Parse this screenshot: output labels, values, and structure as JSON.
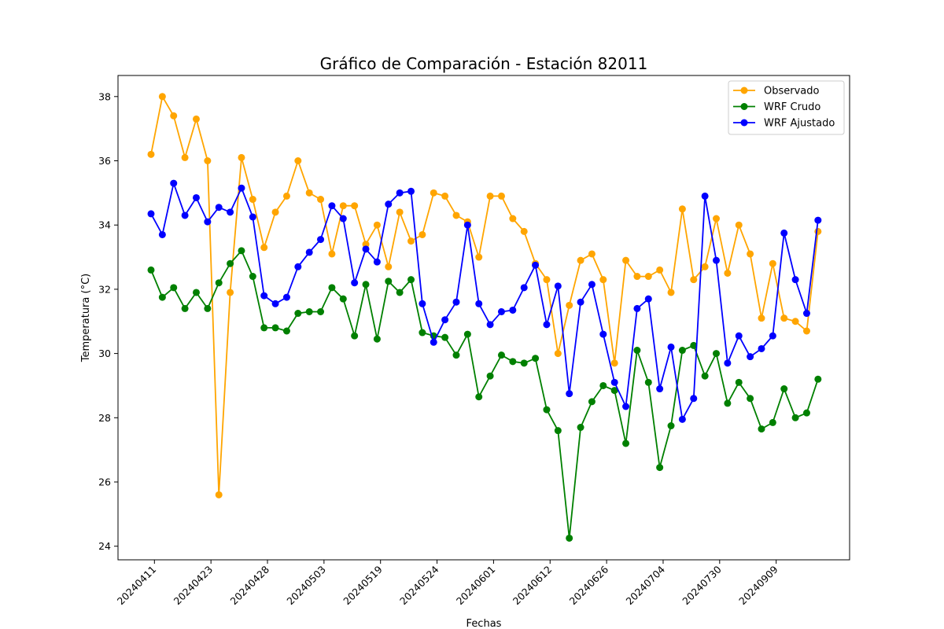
{
  "chart_data": {
    "type": "line",
    "title": "Gráfico de Comparación - Estación 82011",
    "xlabel": "Fechas",
    "ylabel": "Temperatura (°C)",
    "ylim": [
      23.6,
      38.7
    ],
    "yticks": [
      24,
      26,
      28,
      30,
      32,
      34,
      36,
      38
    ],
    "xtick_labels": [
      "20240411",
      "20240423",
      "20240428",
      "20240503",
      "20240519",
      "20240524",
      "20240601",
      "20240612",
      "20240626",
      "20240704",
      "20240730",
      "20240909"
    ],
    "xtick_positions": [
      0.3,
      5.3,
      10.3,
      15.3,
      20.3,
      25.3,
      30.3,
      35.3,
      40.3,
      45.3,
      50.3,
      55.3
    ],
    "x": [
      0,
      1,
      2,
      3,
      4,
      5,
      6,
      7,
      8,
      9,
      10,
      11,
      12,
      13,
      14,
      15,
      16,
      17,
      18,
      19,
      20,
      21,
      22,
      23,
      24,
      25,
      26,
      27,
      28,
      29,
      30,
      31,
      32,
      33,
      34,
      35,
      36,
      37,
      38,
      39,
      40,
      41,
      42,
      43,
      44,
      45,
      46,
      47,
      48,
      49,
      50,
      51,
      52,
      53,
      54,
      55,
      56,
      57,
      58,
      59
    ],
    "legend_position": "top-right",
    "grid": false,
    "series": [
      {
        "name": "Observado",
        "color": "#ffa500",
        "values": [
          36.2,
          38.0,
          37.4,
          36.1,
          37.3,
          36.0,
          25.6,
          31.9,
          36.1,
          34.8,
          33.3,
          34.4,
          34.9,
          36.0,
          35.0,
          34.8,
          33.1,
          34.6,
          34.6,
          33.4,
          34.0,
          32.7,
          34.4,
          33.5,
          33.7,
          35.0,
          34.9,
          34.3,
          34.1,
          33.0,
          34.9,
          34.9,
          34.2,
          33.8,
          32.8,
          32.3,
          30.0,
          31.5,
          32.9,
          33.1,
          32.3,
          29.7,
          32.9,
          32.4,
          32.4,
          32.6,
          31.9,
          34.5,
          32.3,
          32.7,
          34.2,
          32.5,
          34.0,
          33.1,
          31.1,
          32.8,
          31.1,
          31.0,
          30.7,
          33.8
        ]
      },
      {
        "name": "WRF Crudo",
        "color": "#008000",
        "values": [
          32.6,
          31.75,
          32.05,
          31.4,
          31.9,
          31.4,
          32.2,
          32.8,
          33.2,
          32.4,
          30.8,
          30.8,
          30.7,
          31.25,
          31.3,
          31.3,
          32.05,
          31.7,
          30.55,
          32.15,
          30.45,
          32.25,
          31.9,
          32.3,
          30.65,
          30.55,
          30.5,
          29.95,
          30.6,
          28.65,
          29.3,
          29.95,
          29.75,
          29.7,
          29.85,
          28.25,
          27.6,
          24.25,
          27.7,
          28.5,
          29.0,
          28.85,
          27.2,
          30.1,
          29.1,
          26.45,
          27.75,
          30.1,
          30.25,
          29.3,
          30.0,
          28.45,
          29.1,
          28.6,
          27.65,
          27.85,
          28.9,
          28.0,
          28.15,
          29.2
        ]
      },
      {
        "name": "WRF Ajustado",
        "color": "#0000ff",
        "values": [
          34.35,
          33.7,
          35.3,
          34.3,
          34.85,
          34.1,
          34.55,
          34.4,
          35.15,
          34.25,
          31.8,
          31.55,
          31.75,
          32.7,
          33.15,
          33.55,
          34.6,
          34.2,
          32.2,
          33.25,
          32.85,
          34.65,
          35.0,
          35.05,
          31.55,
          30.35,
          31.05,
          31.6,
          34.0,
          31.55,
          30.9,
          31.3,
          31.35,
          32.05,
          32.75,
          30.9,
          32.1,
          28.75,
          31.6,
          32.15,
          30.6,
          29.1,
          28.35,
          31.4,
          31.7,
          28.9,
          30.2,
          27.95,
          28.6,
          34.9,
          32.9,
          29.7,
          30.55,
          29.9,
          30.15,
          30.55,
          33.75,
          32.3,
          31.25,
          34.15
        ]
      }
    ]
  }
}
